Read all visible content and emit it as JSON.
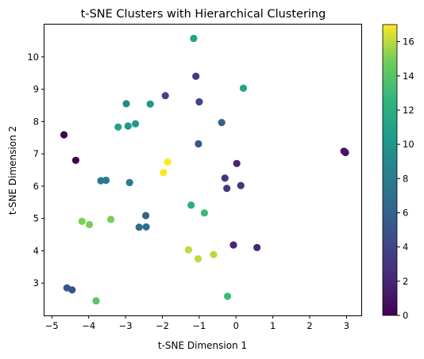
{
  "chart_data": {
    "type": "scatter",
    "title": "t-SNE Clusters with Hierarchical Clustering",
    "xlabel": "t-SNE Dimension 1",
    "ylabel": "t-SNE Dimension 2",
    "xlim": [
      -5.2,
      3.4
    ],
    "ylim": [
      2.0,
      11.0
    ],
    "xticks": [
      -5,
      -4,
      -3,
      -2,
      -1,
      0,
      1,
      2,
      3
    ],
    "yticks": [
      3,
      4,
      5,
      6,
      7,
      8,
      9,
      10
    ],
    "grid": false,
    "colormap": "viridis",
    "colorbar": {
      "min": 0,
      "max": 17,
      "ticks": [
        0,
        2,
        4,
        6,
        8,
        10,
        12,
        14,
        16
      ]
    },
    "points": [
      {
        "x": -4.67,
        "y": 7.59,
        "c": 0
      },
      {
        "x": -4.35,
        "y": 6.8,
        "c": 0
      },
      {
        "x": 2.93,
        "y": 7.08,
        "c": 1
      },
      {
        "x": 2.97,
        "y": 7.04,
        "c": 1
      },
      {
        "x": -0.07,
        "y": 4.18,
        "c": 2
      },
      {
        "x": 0.57,
        "y": 4.1,
        "c": 2
      },
      {
        "x": 0.02,
        "y": 6.7,
        "c": 2
      },
      {
        "x": 0.13,
        "y": 6.02,
        "c": 3
      },
      {
        "x": -0.3,
        "y": 6.25,
        "c": 3
      },
      {
        "x": -0.25,
        "y": 5.93,
        "c": 3
      },
      {
        "x": -1.09,
        "y": 9.4,
        "c": 3
      },
      {
        "x": -1.92,
        "y": 8.8,
        "c": 4
      },
      {
        "x": -1.0,
        "y": 8.61,
        "c": 4
      },
      {
        "x": -4.59,
        "y": 2.85,
        "c": 5
      },
      {
        "x": -4.45,
        "y": 2.79,
        "c": 5
      },
      {
        "x": -1.02,
        "y": 7.31,
        "c": 5
      },
      {
        "x": -0.39,
        "y": 7.97,
        "c": 6
      },
      {
        "x": -2.45,
        "y": 5.09,
        "c": 6
      },
      {
        "x": -2.63,
        "y": 4.73,
        "c": 7
      },
      {
        "x": -2.44,
        "y": 4.74,
        "c": 7
      },
      {
        "x": -3.67,
        "y": 6.17,
        "c": 8
      },
      {
        "x": -3.53,
        "y": 6.18,
        "c": 8
      },
      {
        "x": -2.89,
        "y": 6.11,
        "c": 8
      },
      {
        "x": -2.98,
        "y": 8.55,
        "c": 9
      },
      {
        "x": -2.33,
        "y": 8.54,
        "c": 10
      },
      {
        "x": -2.73,
        "y": 7.93,
        "c": 10
      },
      {
        "x": -2.93,
        "y": 7.86,
        "c": 10
      },
      {
        "x": -3.2,
        "y": 7.83,
        "c": 11
      },
      {
        "x": -1.15,
        "y": 10.57,
        "c": 11
      },
      {
        "x": 0.2,
        "y": 9.03,
        "c": 11
      },
      {
        "x": -1.22,
        "y": 5.41,
        "c": 12
      },
      {
        "x": -0.86,
        "y": 5.17,
        "c": 13
      },
      {
        "x": -0.23,
        "y": 2.59,
        "c": 13
      },
      {
        "x": -3.8,
        "y": 2.45,
        "c": 14
      },
      {
        "x": -3.4,
        "y": 4.97,
        "c": 15
      },
      {
        "x": -4.18,
        "y": 4.91,
        "c": 15
      },
      {
        "x": -3.98,
        "y": 4.81,
        "c": 15
      },
      {
        "x": -0.61,
        "y": 3.88,
        "c": 16
      },
      {
        "x": -1.29,
        "y": 4.03,
        "c": 16
      },
      {
        "x": -1.03,
        "y": 3.75,
        "c": 16
      },
      {
        "x": -1.86,
        "y": 6.75,
        "c": 17
      },
      {
        "x": -1.97,
        "y": 6.42,
        "c": 17
      }
    ]
  }
}
